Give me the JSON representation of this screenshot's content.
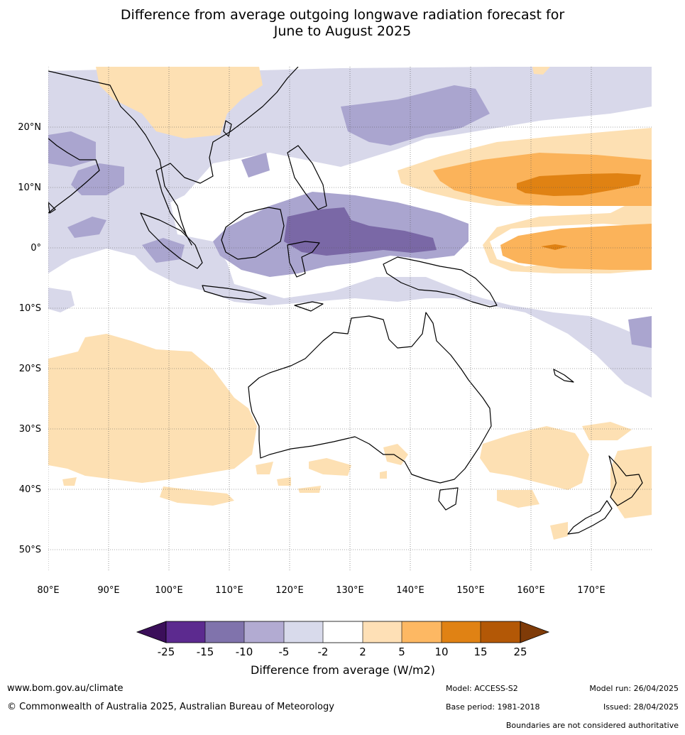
{
  "title": {
    "line1": "Difference from average outgoing longwave radiation forecast for",
    "line2": "June to August 2025"
  },
  "map": {
    "lon_labels": [
      "80°E",
      "90°E",
      "100°E",
      "110°E",
      "120°E",
      "130°E",
      "140°E",
      "150°E",
      "160°E",
      "170°E"
    ],
    "lat_labels": [
      "20°N",
      "10°N",
      "0°",
      "10°S",
      "20°S",
      "30°S",
      "40°S",
      "50°S"
    ],
    "colors": {
      "purple_dark": "#7a68a6",
      "purple_mid": "#aaa5cf",
      "purple_light": "#d8d8ea",
      "orange_light": "#fde0b3",
      "orange_mid": "#fbb35a",
      "orange_dark": "#e08213",
      "land_outline": "#000000"
    }
  },
  "legend": {
    "title": "Difference from average (W/m2)",
    "ticks": [
      "-25",
      "-15",
      "-10",
      "-5",
      "-2",
      "2",
      "5",
      "10",
      "15",
      "25"
    ],
    "colors": [
      "#3b0f5a",
      "#5c2a8f",
      "#8073ac",
      "#b2abd2",
      "#d8daeb",
      "#ffffff",
      "#fee0b6",
      "#fdb863",
      "#e08214",
      "#b35806",
      "#7f3b08"
    ]
  },
  "footer": {
    "website": "www.bom.gov.au/climate",
    "copyright": "© Commonwealth of Australia 2025, Australian Bureau of Meteorology",
    "model": "Model: ACCESS-S2",
    "base_period": "Base period: 1981-2018",
    "model_run": "Model run: 26/04/2025",
    "issued": "Issued: 28/04/2025",
    "disclaimer": "Boundaries are not considered authoritative"
  }
}
